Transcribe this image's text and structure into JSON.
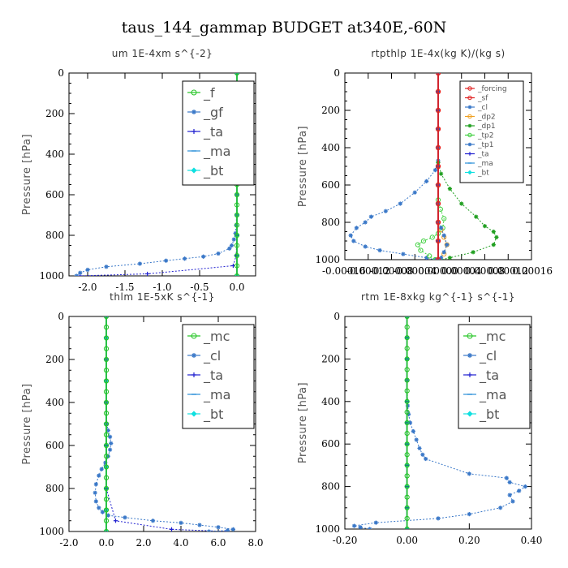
{
  "figure_title": "taus_144_gammap  BUDGET at340E,-60N",
  "colors": {
    "_f": "#22c422",
    "_gf": "#3a78c8",
    "_ta": "#2020d0",
    "_ma": "#2b90d9",
    "_bt": "#10e0e0",
    "_mc": "#22c422",
    "_cl": "#3a78c8",
    "_forcing": "#e02020",
    "_sf": "#e02020",
    "_dp2": "#f0a020",
    "_dp1": "#22a022",
    "_tp2": "#40d040",
    "_tp1": "#3a78c8"
  },
  "chart_data": [
    {
      "type": "line",
      "title": "um   1E-4xm  s^{-2}",
      "ylabel": "Pressure [hPa]",
      "ylim": [
        1000,
        0
      ],
      "xlim": [
        -2.25,
        0.25
      ],
      "xticks": [
        -2.0,
        -1.5,
        -1.0,
        -0.5,
        0.0
      ],
      "xtick_labels": [
        "-2.0",
        "-1.5",
        "-1.0",
        "-0.5",
        "0.0"
      ],
      "yticks": [
        0,
        200,
        400,
        600,
        800,
        1000
      ],
      "legend": "top-right",
      "legend_font": 16,
      "series": [
        {
          "name": "_f",
          "x": [
            0,
            0,
            0,
            0,
            0,
            0,
            0,
            0,
            0,
            0,
            0,
            0,
            0,
            0,
            0,
            0,
            0,
            0,
            0,
            0,
            0
          ],
          "y": [
            0,
            50,
            100,
            150,
            200,
            250,
            300,
            350,
            400,
            450,
            500,
            550,
            600,
            650,
            700,
            750,
            800,
            850,
            900,
            950,
            1000
          ]
        },
        {
          "name": "_gf",
          "x": [
            0,
            0,
            0,
            0,
            -0.005,
            -0.01,
            -0.02,
            -0.04,
            -0.07,
            -0.1,
            -0.25,
            -0.45,
            -0.7,
            -0.95,
            -1.3,
            -1.75,
            -2.0,
            -2.1,
            -2.15
          ],
          "y": [
            0,
            200,
            400,
            600,
            700,
            750,
            790,
            820,
            850,
            865,
            890,
            905,
            915,
            925,
            940,
            955,
            970,
            985,
            1000
          ]
        },
        {
          "name": "_ta",
          "x": [
            0,
            0,
            0,
            0,
            0,
            -0.01,
            -0.05,
            -1.2,
            -2.1
          ],
          "y": [
            0,
            200,
            400,
            600,
            800,
            900,
            950,
            990,
            1000
          ]
        },
        {
          "name": "_ma",
          "x": [
            0,
            0,
            0,
            0,
            0,
            0,
            0,
            0,
            0,
            0,
            0
          ],
          "y": [
            0,
            100,
            200,
            300,
            400,
            500,
            600,
            700,
            800,
            900,
            1000
          ]
        },
        {
          "name": "_bt",
          "x": [
            0,
            0,
            0,
            0,
            0,
            0,
            0,
            0,
            0,
            0,
            0
          ],
          "y": [
            0,
            100,
            200,
            300,
            400,
            500,
            600,
            700,
            800,
            900,
            1000
          ]
        }
      ]
    },
    {
      "type": "line",
      "title": "rtpthlp   1E-4x(kg K)/(kg s)",
      "ylabel": "Pressure [hPa]",
      "ylim": [
        1000,
        0
      ],
      "xlim": [
        -0.00016,
        0.00016
      ],
      "xticks": [
        -0.00016,
        -0.00012,
        -8e-05,
        -4e-05,
        0.0,
        4e-05,
        8e-05,
        0.00012,
        0.00016
      ],
      "xtick_labels": [
        "-0.00016",
        "-0.00012",
        "-0.00008",
        "-0.00004",
        "0.00000",
        "0.00004",
        "0.00008",
        "0.00012",
        "0.00016"
      ],
      "yticks": [
        0,
        200,
        400,
        600,
        800,
        1000
      ],
      "legend": "top-right",
      "legend_font": 9,
      "series": [
        {
          "name": "_forcing",
          "x": [
            0,
            0,
            0,
            0,
            0,
            0,
            0,
            0,
            0,
            0,
            0
          ],
          "y": [
            0,
            100,
            200,
            300,
            400,
            500,
            600,
            700,
            800,
            900,
            1000
          ]
        },
        {
          "name": "_sf",
          "x": [
            0,
            0,
            0,
            0,
            0,
            0,
            0,
            0,
            0,
            0,
            0
          ],
          "y": [
            0,
            100,
            200,
            300,
            400,
            500,
            600,
            700,
            800,
            900,
            1000
          ]
        },
        {
          "name": "_cl",
          "x": [
            0,
            0,
            0,
            0,
            5e-06,
            1e-05,
            1.5e-05,
            1e-05,
            5e-06,
            0
          ],
          "y": [
            0,
            400,
            700,
            800,
            830,
            870,
            920,
            960,
            990,
            1000
          ]
        },
        {
          "name": "_dp2",
          "x": [
            0,
            0,
            0,
            5e-06,
            1e-05,
            1.5e-05,
            1e-05,
            0
          ],
          "y": [
            0,
            600,
            800,
            840,
            880,
            920,
            970,
            1000
          ]
        },
        {
          "name": "_dp1",
          "x": [
            0,
            0,
            5e-06,
            2e-05,
            4e-05,
            6.5e-05,
            8e-05,
            9.5e-05,
            0.0001,
            9.5e-05,
            6e-05,
            2e-05,
            5e-06
          ],
          "y": [
            0,
            480,
            540,
            620,
            700,
            770,
            820,
            850,
            880,
            920,
            960,
            990,
            1000
          ]
        },
        {
          "name": "_tp2",
          "x": [
            0,
            0,
            4e-06,
            1e-05,
            8e-06,
            0,
            -1e-05,
            -2.5e-05,
            -3.5e-05,
            -3e-05,
            -1.5e-05,
            -5e-06
          ],
          "y": [
            0,
            680,
            730,
            780,
            830,
            860,
            880,
            900,
            920,
            950,
            980,
            1000
          ]
        },
        {
          "name": "_tp1",
          "x": [
            0,
            0,
            -5e-06,
            -2e-05,
            -4e-05,
            -6.5e-05,
            -9e-05,
            -0.000115,
            -0.000125,
            -0.00014,
            -0.00015,
            -0.000145,
            -0.000125,
            -0.0001,
            -6e-05,
            -2e-05,
            -5e-06
          ],
          "y": [
            0,
            470,
            520,
            580,
            640,
            700,
            740,
            770,
            800,
            830,
            870,
            900,
            930,
            950,
            970,
            990,
            1000
          ]
        },
        {
          "name": "_ta",
          "x": [
            0,
            0,
            0,
            0,
            0,
            0,
            0,
            0,
            0,
            0,
            0
          ],
          "y": [
            0,
            100,
            200,
            300,
            400,
            500,
            600,
            700,
            800,
            900,
            1000
          ]
        },
        {
          "name": "_ma",
          "x": [
            0,
            0,
            0,
            0,
            0,
            0,
            0,
            0,
            0,
            0,
            0
          ],
          "y": [
            0,
            100,
            200,
            300,
            400,
            500,
            600,
            700,
            800,
            900,
            1000
          ]
        },
        {
          "name": "_bt",
          "x": [
            0,
            0,
            0,
            0,
            0,
            0,
            0,
            0,
            0,
            0,
            0
          ],
          "y": [
            0,
            100,
            200,
            300,
            400,
            500,
            600,
            700,
            800,
            900,
            1000
          ]
        }
      ]
    },
    {
      "type": "line",
      "title": "thlm   1E-5xK  s^{-1}",
      "ylabel": "Pressure [hPa]",
      "ylim": [
        1000,
        0
      ],
      "xlim": [
        -2.0,
        8.0
      ],
      "xticks": [
        -2.0,
        0.0,
        2.0,
        4.0,
        6.0,
        8.0
      ],
      "xtick_labels": [
        "-2.0",
        "0.0",
        "2.0",
        "4.0",
        "6.0",
        "8.0"
      ],
      "yticks": [
        0,
        200,
        400,
        600,
        800,
        1000
      ],
      "legend": "top-right",
      "legend_font": 16,
      "series": [
        {
          "name": "_mc",
          "x": [
            0,
            0,
            0,
            0,
            0,
            0,
            0,
            0,
            0,
            0,
            0,
            0,
            0,
            0,
            0,
            0,
            0,
            0,
            0,
            0,
            0
          ],
          "y": [
            0,
            50,
            100,
            150,
            200,
            250,
            300,
            350,
            400,
            450,
            500,
            550,
            600,
            650,
            700,
            750,
            800,
            850,
            900,
            950,
            1000
          ]
        },
        {
          "name": "_cl",
          "x": [
            0,
            0,
            0,
            0.03,
            0.1,
            0.2,
            0.25,
            0.2,
            0.1,
            -0.05,
            -0.25,
            -0.4,
            -0.55,
            -0.6,
            -0.55,
            -0.4,
            -0.2,
            0.1,
            1.0,
            2.5,
            4.0,
            5.0,
            6.0,
            6.8,
            6.5,
            5.5
          ],
          "y": [
            0,
            200,
            400,
            500,
            530,
            560,
            590,
            620,
            650,
            680,
            710,
            740,
            780,
            820,
            860,
            890,
            910,
            925,
            935,
            950,
            960,
            970,
            980,
            990,
            995,
            1000
          ]
        },
        {
          "name": "_ta",
          "x": [
            0,
            0,
            0,
            0,
            0,
            0.5,
            3.5,
            6.5
          ],
          "y": [
            0,
            200,
            400,
            600,
            800,
            950,
            990,
            1000
          ]
        },
        {
          "name": "_ma",
          "x": [
            0,
            0,
            0,
            0,
            0,
            0,
            0,
            0,
            0,
            0,
            0
          ],
          "y": [
            0,
            100,
            200,
            300,
            400,
            500,
            600,
            700,
            800,
            900,
            1000
          ]
        },
        {
          "name": "_bt",
          "x": [
            0,
            0,
            0,
            0,
            0,
            0,
            0,
            0,
            0,
            0,
            0
          ],
          "y": [
            0,
            100,
            200,
            300,
            400,
            500,
            600,
            700,
            800,
            900,
            1000
          ]
        }
      ]
    },
    {
      "type": "line",
      "title": "rtm   1E-8xkg  kg^{-1}  s^{-1}",
      "ylabel": "Pressure [hPa]",
      "ylim": [
        1000,
        0
      ],
      "xlim": [
        -0.2,
        0.4
      ],
      "xticks": [
        -0.2,
        0.0,
        0.2,
        0.4
      ],
      "xtick_labels": [
        "-0.20",
        "0.00",
        "0.20",
        "0.40"
      ],
      "yticks": [
        0,
        200,
        400,
        600,
        800,
        1000
      ],
      "legend": "top-right",
      "legend_font": 16,
      "series": [
        {
          "name": "_mc",
          "x": [
            0,
            0,
            0,
            0,
            0,
            0,
            0,
            0,
            0,
            0,
            0,
            0,
            0,
            0,
            0,
            0,
            0,
            0,
            0,
            0,
            0
          ],
          "y": [
            0,
            50,
            100,
            150,
            200,
            250,
            300,
            350,
            400,
            450,
            500,
            550,
            600,
            650,
            700,
            750,
            800,
            850,
            900,
            950,
            1000
          ]
        },
        {
          "name": "_cl",
          "x": [
            0,
            0,
            0.002,
            0.005,
            0.01,
            0.02,
            0.03,
            0.04,
            0.05,
            0.06,
            0.2,
            0.32,
            0.33,
            0.38,
            0.36,
            0.33,
            0.34,
            0.3,
            0.2,
            0.1,
            -0.1,
            -0.17,
            -0.15,
            -0.12
          ],
          "y": [
            0,
            300,
            420,
            460,
            500,
            540,
            580,
            620,
            650,
            670,
            740,
            760,
            780,
            800,
            820,
            840,
            870,
            900,
            930,
            950,
            970,
            985,
            992,
            1000
          ]
        },
        {
          "name": "_ta",
          "x": [
            0,
            0,
            0,
            0,
            0,
            0,
            0,
            0,
            0,
            0,
            0
          ],
          "y": [
            0,
            100,
            200,
            300,
            400,
            500,
            600,
            700,
            800,
            900,
            1000
          ]
        },
        {
          "name": "_ma",
          "x": [
            0,
            0,
            0,
            0,
            0,
            0,
            0,
            0,
            0,
            0,
            0
          ],
          "y": [
            0,
            100,
            200,
            300,
            400,
            500,
            600,
            700,
            800,
            900,
            1000
          ]
        },
        {
          "name": "_bt",
          "x": [
            0,
            0,
            0,
            0,
            0,
            0,
            0,
            0,
            0,
            0,
            0
          ],
          "y": [
            0,
            100,
            200,
            300,
            400,
            500,
            600,
            700,
            800,
            900,
            1000
          ]
        }
      ]
    }
  ]
}
